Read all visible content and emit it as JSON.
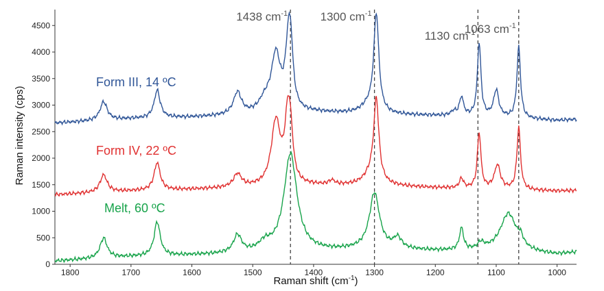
{
  "chart_data": {
    "type": "line",
    "title": "",
    "xlabel": "Raman shift (cm-1)",
    "xlabel_main": "Raman shift (cm",
    "xlabel_sup": "-1",
    "xlabel_end": ")",
    "ylabel": "Raman intensity (cps)",
    "xlim": [
      1825,
      968
    ],
    "ylim": [
      0,
      4800
    ],
    "x_ticks": [
      1800,
      1700,
      1600,
      1500,
      1400,
      1300,
      1200,
      1100,
      1000
    ],
    "y_ticks": [
      0,
      500,
      1000,
      1500,
      2000,
      2500,
      3000,
      3500,
      4000,
      4500
    ],
    "grid": false,
    "reference_lines": [
      {
        "x": 1438,
        "label": "1438 cm",
        "sup": "-1"
      },
      {
        "x": 1300,
        "label": "1300 cm",
        "sup": "-1"
      },
      {
        "x": 1130,
        "label": "1130 cm",
        "sup": "-1"
      },
      {
        "x": 1063,
        "label": "1063 cm",
        "sup": "-1"
      }
    ],
    "series": [
      {
        "name": "Form III, 14 °C",
        "label": "Form III, 14 ºC",
        "color": "#2f5597",
        "baseline": [
          [
            1825,
            2660
          ],
          [
            1700,
            2740
          ],
          [
            1600,
            2770
          ],
          [
            1500,
            2810
          ],
          [
            1400,
            2860
          ],
          [
            1300,
            2820
          ],
          [
            1200,
            2800
          ],
          [
            1100,
            2770
          ],
          [
            1000,
            2710
          ],
          [
            968,
            2730
          ]
        ],
        "peaks": [
          [
            1745,
            350,
            7
          ],
          [
            1657,
            520,
            6
          ],
          [
            1525,
            420,
            8
          ],
          [
            1480,
            220,
            12
          ],
          [
            1462,
            1050,
            9
          ],
          [
            1441,
            1350,
            6
          ],
          [
            1437,
            600,
            4
          ],
          [
            1310,
            140,
            15
          ],
          [
            1297,
            1850,
            5
          ],
          [
            1170,
            80,
            5
          ],
          [
            1157,
            350,
            4
          ],
          [
            1128,
            1380,
            3.5
          ],
          [
            1100,
            500,
            5
          ],
          [
            1063,
            1350,
            3.5
          ]
        ]
      },
      {
        "name": "Form IV, 22 °C",
        "label": "Form IV, 22 ºC",
        "color": "#e03030",
        "baseline": [
          [
            1825,
            1310
          ],
          [
            1700,
            1380
          ],
          [
            1600,
            1410
          ],
          [
            1500,
            1450
          ],
          [
            1400,
            1480
          ],
          [
            1300,
            1480
          ],
          [
            1200,
            1440
          ],
          [
            1100,
            1410
          ],
          [
            1000,
            1380
          ],
          [
            968,
            1390
          ]
        ],
        "peaks": [
          [
            1745,
            330,
            7
          ],
          [
            1657,
            520,
            6
          ],
          [
            1525,
            250,
            8
          ],
          [
            1462,
            1200,
            9
          ],
          [
            1442,
            1350,
            6
          ],
          [
            1437,
            450,
            4
          ],
          [
            1370,
            80,
            6
          ],
          [
            1297,
            1520,
            5
          ],
          [
            1305,
            200,
            15
          ],
          [
            1157,
            180,
            4
          ],
          [
            1128,
            1050,
            3.5
          ],
          [
            1098,
            450,
            6
          ],
          [
            1063,
            1180,
            3.5
          ]
        ]
      },
      {
        "name": "Melt, 60 °C",
        "label": "Melt, 60 ºC",
        "color": "#17a34a",
        "baseline": [
          [
            1825,
            60
          ],
          [
            1700,
            140
          ],
          [
            1600,
            170
          ],
          [
            1500,
            200
          ],
          [
            1400,
            240
          ],
          [
            1300,
            280
          ],
          [
            1200,
            250
          ],
          [
            1100,
            240
          ],
          [
            1000,
            180
          ],
          [
            968,
            220
          ]
        ],
        "peaks": [
          [
            1745,
            380,
            7
          ],
          [
            1657,
            640,
            6
          ],
          [
            1525,
            330,
            8
          ],
          [
            1480,
            150,
            12
          ],
          [
            1438,
            1850,
            13
          ],
          [
            1300,
            1050,
            10
          ],
          [
            1262,
            200,
            8
          ],
          [
            1157,
            410,
            4
          ],
          [
            1125,
            120,
            6
          ],
          [
            1080,
            720,
            16
          ],
          [
            1060,
            150,
            5
          ]
        ]
      }
    ]
  }
}
